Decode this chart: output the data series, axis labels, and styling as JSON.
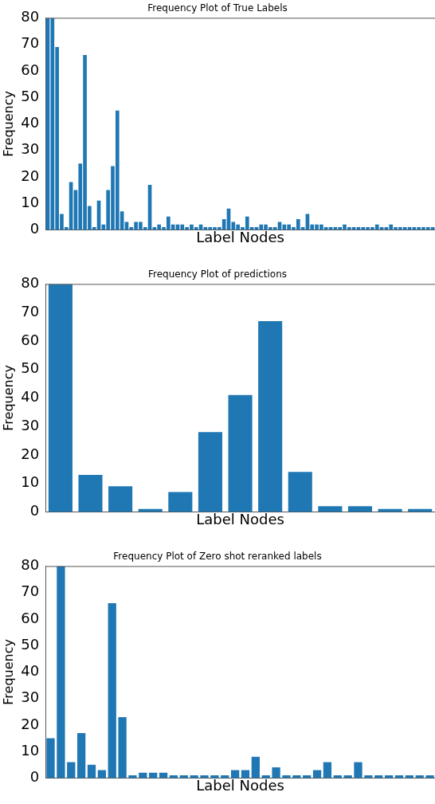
{
  "chart_data": [
    {
      "type": "bar",
      "title": "Frequency Plot of True Labels",
      "xlabel": "Label Nodes",
      "ylabel": "Frequency",
      "categories": [
        null,
        null,
        null,
        null,
        null,
        null,
        null,
        null,
        null,
        null,
        null,
        null,
        null,
        null,
        null,
        null,
        null,
        null,
        null,
        null,
        null,
        null,
        null,
        null,
        null,
        null,
        null,
        null,
        null,
        null,
        null,
        null,
        null,
        null,
        null,
        null,
        null,
        null,
        null,
        null,
        null,
        null,
        null,
        null,
        null,
        null,
        null,
        null,
        null,
        null,
        null,
        null,
        null,
        null,
        null,
        null,
        null,
        null,
        null,
        null,
        null,
        null,
        null,
        null,
        null,
        null,
        null,
        null,
        null,
        null,
        null,
        null,
        null,
        null,
        null,
        null,
        null,
        null,
        null,
        null,
        null,
        null,
        null,
        null
      ],
      "values": [
        80,
        80,
        69,
        6,
        1,
        18,
        15,
        25,
        66,
        9,
        1,
        11,
        2,
        15,
        24,
        45,
        7,
        3,
        1,
        3,
        3,
        1,
        17,
        1,
        2,
        1,
        5,
        2,
        2,
        2,
        1,
        2,
        1,
        2,
        1,
        1,
        1,
        1,
        4,
        8,
        3,
        2,
        1,
        5,
        1,
        1,
        2,
        2,
        1,
        1,
        3,
        2,
        2,
        1,
        4,
        1,
        6,
        2,
        2,
        2,
        1,
        1,
        1,
        1,
        2,
        1,
        1,
        1,
        1,
        1,
        1,
        2,
        1,
        1,
        2,
        1,
        1,
        1,
        1,
        1,
        1,
        1,
        1,
        1
      ],
      "color": "#1f77b4",
      "ylim": [
        0,
        80
      ],
      "yticks": [
        0,
        10,
        20,
        30,
        40,
        50,
        60,
        70,
        80
      ],
      "tick_labels": "y",
      "grid": false
    },
    {
      "type": "bar",
      "title": "Frequency Plot of predictions",
      "xlabel": "Label Nodes",
      "ylabel": "Frequency",
      "categories": [
        null,
        null,
        null,
        null,
        null,
        null,
        null,
        null,
        null,
        null,
        null,
        null,
        null
      ],
      "values": [
        80,
        13,
        9,
        1,
        7,
        28,
        41,
        67,
        14,
        2,
        2,
        1,
        1
      ],
      "color": "#1f77b4",
      "ylim": [
        0,
        80
      ],
      "yticks": [
        0,
        10,
        20,
        30,
        40,
        50,
        60,
        70,
        80
      ],
      "tick_labels": "y",
      "grid": false
    },
    {
      "type": "bar",
      "title": "Frequency Plot of Zero shot reranked labels",
      "xlabel": "Label Nodes",
      "ylabel": "Frequency",
      "categories": [
        null,
        null,
        null,
        null,
        null,
        null,
        null,
        null,
        null,
        null,
        null,
        null,
        null,
        null,
        null,
        null,
        null,
        null,
        null,
        null,
        null,
        null,
        null,
        null,
        null,
        null,
        null,
        null,
        null,
        null,
        null,
        null,
        null,
        null,
        null,
        null,
        null,
        null
      ],
      "values": [
        15,
        80,
        6,
        17,
        5,
        3,
        66,
        23,
        1,
        2,
        2,
        2,
        1,
        1,
        1,
        1,
        1,
        1,
        3,
        3,
        8,
        1,
        4,
        1,
        1,
        1,
        3,
        6,
        1,
        1,
        6,
        1,
        1,
        1,
        1,
        1,
        1,
        1
      ],
      "color": "#1f77b4",
      "ylim": [
        0,
        80
      ],
      "yticks": [
        0,
        10,
        20,
        30,
        40,
        50,
        60,
        70,
        80
      ],
      "tick_labels": "y",
      "grid": false
    }
  ]
}
